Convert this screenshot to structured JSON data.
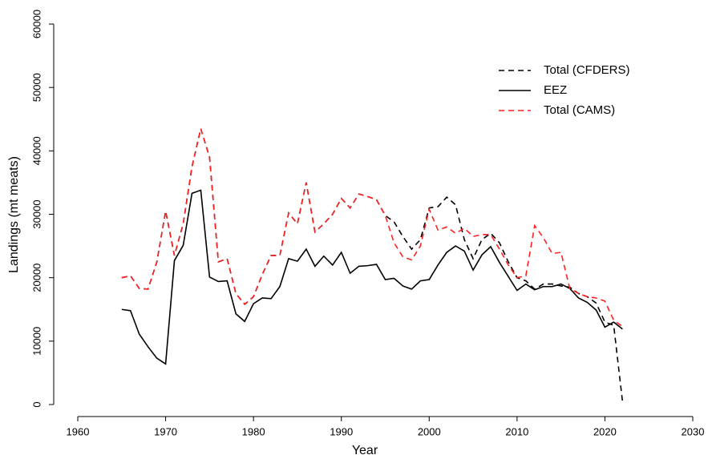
{
  "chart_data": {
    "type": "line",
    "x_label": "Year",
    "y_label": "Landings (mt meats)",
    "x": [
      1965,
      1966,
      1967,
      1968,
      1969,
      1970,
      1971,
      1972,
      1973,
      1974,
      1975,
      1976,
      1977,
      1978,
      1979,
      1980,
      1981,
      1982,
      1983,
      1984,
      1985,
      1986,
      1987,
      1988,
      1989,
      1990,
      1991,
      1992,
      1993,
      1994,
      1995,
      1996,
      1997,
      1998,
      1999,
      2000,
      2001,
      2002,
      2003,
      2004,
      2005,
      2006,
      2007,
      2008,
      2009,
      2010,
      2011,
      2012,
      2013,
      2014,
      2015,
      2016,
      2017,
      2018,
      2019,
      2020,
      2021,
      2022
    ],
    "series": [
      {
        "name": "Total (CFDERS)",
        "color": "#000000",
        "linestyle": "dashed",
        "values": [
          20000,
          20300,
          18300,
          18200,
          22500,
          30500,
          23500,
          28500,
          37500,
          43500,
          39000,
          22500,
          23000,
          17500,
          15800,
          17000,
          20500,
          23500,
          23500,
          30200,
          28500,
          35000,
          27200,
          28500,
          30000,
          32500,
          31000,
          33200,
          32800,
          32300,
          29800,
          28800,
          26500,
          24500,
          26000,
          31000,
          31200,
          32700,
          31500,
          26000,
          23000,
          26000,
          27000,
          25500,
          22500,
          20000,
          19500,
          18200,
          19000,
          19000,
          18700,
          18500,
          17500,
          17000,
          16000,
          13000,
          12500,
          500
        ]
      },
      {
        "name": "EEZ",
        "color": "#000000",
        "linestyle": "solid",
        "values": [
          15000,
          14800,
          11100,
          9100,
          7300,
          6400,
          22700,
          25100,
          33300,
          33800,
          20100,
          19400,
          19500,
          14300,
          13100,
          15900,
          16800,
          16700,
          18600,
          23000,
          22600,
          24500,
          21800,
          23400,
          22000,
          24000,
          20700,
          21800,
          21900,
          22100,
          19700,
          19900,
          18700,
          18200,
          19500,
          19700,
          22000,
          24000,
          25000,
          24200,
          21200,
          23600,
          24900,
          22400,
          20200,
          18000,
          19000,
          18100,
          18600,
          18600,
          19000,
          18300,
          16800,
          16100,
          14900,
          12200,
          13000,
          11900
        ]
      },
      {
        "name": "Total (CAMS)",
        "color": "#ff2020",
        "linestyle": "dashed",
        "values": [
          20000,
          20300,
          18300,
          18200,
          22500,
          30500,
          23500,
          28500,
          37500,
          43500,
          39000,
          22500,
          23000,
          17500,
          15800,
          17000,
          20500,
          23500,
          23500,
          30200,
          28500,
          35000,
          27200,
          28500,
          30000,
          32500,
          31000,
          33200,
          32800,
          32300,
          29800,
          25500,
          23300,
          22800,
          25000,
          30800,
          27500,
          28000,
          27000,
          27800,
          26500,
          26800,
          26800,
          24500,
          22000,
          20000,
          20300,
          28200,
          26300,
          23800,
          24000,
          18300,
          17500,
          17000,
          16800,
          16300,
          13300,
          12300
        ]
      }
    ],
    "xlim": [
      1960,
      2030
    ],
    "xticks": [
      1960,
      1970,
      1980,
      1990,
      2000,
      2010,
      2020,
      2030
    ],
    "ylim": [
      0,
      60000
    ],
    "yticks": [
      0,
      10000,
      20000,
      30000,
      40000,
      50000,
      60000
    ],
    "legend": "top-right"
  }
}
